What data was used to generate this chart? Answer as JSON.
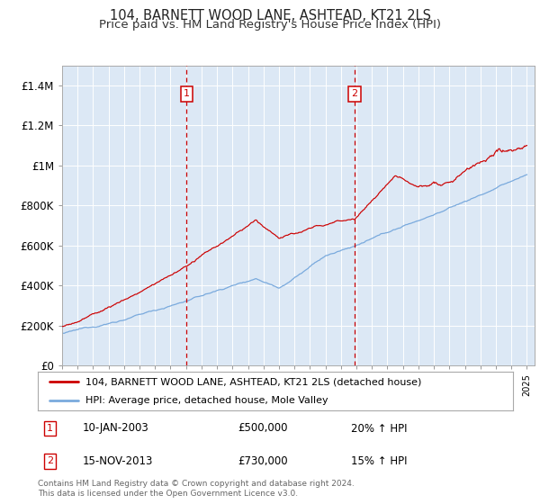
{
  "title": "104, BARNETT WOOD LANE, ASHTEAD, KT21 2LS",
  "subtitle": "Price paid vs. HM Land Registry's House Price Index (HPI)",
  "ylim": [
    0,
    1500000
  ],
  "yticks": [
    0,
    200000,
    400000,
    600000,
    800000,
    1000000,
    1200000,
    1400000
  ],
  "ytick_labels": [
    "£0",
    "£200K",
    "£400K",
    "£600K",
    "£800K",
    "£1M",
    "£1.2M",
    "£1.4M"
  ],
  "background_color": "#dce8f5",
  "red_line_color": "#cc0000",
  "blue_line_color": "#7aaadd",
  "vline_color": "#cc0000",
  "marker1_year": 2003.04,
  "marker2_year": 2013.88,
  "legend_line1": "104, BARNETT WOOD LANE, ASHTEAD, KT21 2LS (detached house)",
  "legend_line2": "HPI: Average price, detached house, Mole Valley",
  "annotation1_num": "1",
  "annotation1_date": "10-JAN-2003",
  "annotation1_price": "£500,000",
  "annotation1_hpi": "20% ↑ HPI",
  "annotation2_num": "2",
  "annotation2_date": "15-NOV-2013",
  "annotation2_price": "£730,000",
  "annotation2_hpi": "15% ↑ HPI",
  "footer": "Contains HM Land Registry data © Crown copyright and database right 2024.\nThis data is licensed under the Open Government Licence v3.0.",
  "title_fontsize": 10.5,
  "subtitle_fontsize": 9.5
}
